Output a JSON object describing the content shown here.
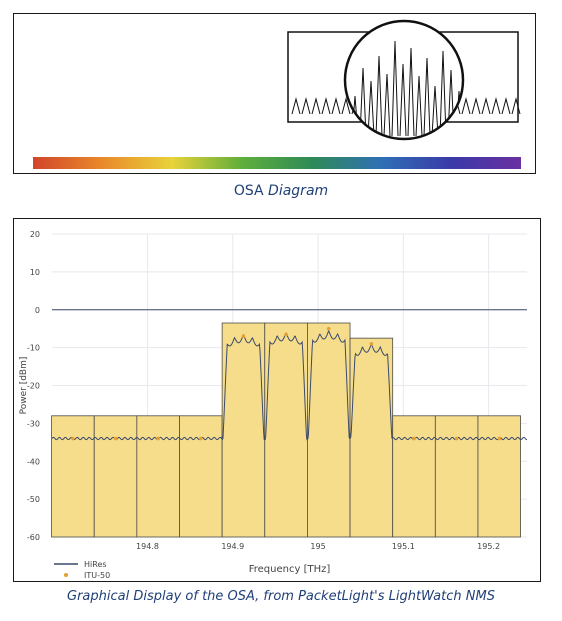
{
  "diagram": {
    "caption_prefix": "OSA",
    "caption_italic": "Diagram",
    "spectrum_colors": [
      "#d2452a",
      "#e98a2a",
      "#e8d33a",
      "#5fae3c",
      "#2e8b57",
      "#2f6fb5",
      "#3a3aa8",
      "#6a2fa0"
    ]
  },
  "chart_data": {
    "type": "area",
    "ylabel": "Power [dBm]",
    "xlabel": "Frequency [THz]",
    "xlim": [
      194.688,
      195.245
    ],
    "ylim": [
      -60,
      20
    ],
    "x_ticks": [
      194.8,
      194.9,
      195,
      195.1,
      195.2
    ],
    "x_tick_labels": [
      "194.8",
      "194.9",
      "195",
      "195.1",
      "195.2"
    ],
    "y_ticks": [
      20,
      10,
      0,
      -10,
      -20,
      -30,
      -40,
      -50,
      -60
    ],
    "y_tick_labels": [
      "20",
      "10",
      "0",
      "-10",
      "-20",
      "-30",
      "-40",
      "-50",
      "-60"
    ],
    "grid": true,
    "zero_line": true,
    "legend_position": "bottom-left",
    "series": [
      {
        "name": "HiRes",
        "color": "#3a4a6a"
      },
      {
        "name": "ITU-50",
        "color": "#e8a030"
      }
    ],
    "channel_bars": [
      {
        "x0": 194.6875,
        "x1": 194.7375,
        "value": -28
      },
      {
        "x0": 194.7375,
        "x1": 194.7875,
        "value": -28
      },
      {
        "x0": 194.7875,
        "x1": 194.8375,
        "value": -28
      },
      {
        "x0": 194.8375,
        "x1": 194.8875,
        "value": -28
      },
      {
        "x0": 194.8875,
        "x1": 194.9375,
        "value": -3.5
      },
      {
        "x0": 194.9375,
        "x1": 194.9875,
        "value": -3.5
      },
      {
        "x0": 194.9875,
        "x1": 195.0375,
        "value": -3.5
      },
      {
        "x0": 195.0375,
        "x1": 195.0875,
        "value": -7.5
      },
      {
        "x0": 195.0875,
        "x1": 195.1375,
        "value": -28
      },
      {
        "x0": 195.1375,
        "x1": 195.1875,
        "value": -28
      },
      {
        "x0": 195.1875,
        "x1": 195.2375,
        "value": -28
      }
    ],
    "itu_points": [
      {
        "x": 194.7125,
        "y": -34
      },
      {
        "x": 194.7625,
        "y": -34
      },
      {
        "x": 194.8125,
        "y": -34
      },
      {
        "x": 194.8625,
        "y": -34
      },
      {
        "x": 194.9125,
        "y": -7
      },
      {
        "x": 194.9625,
        "y": -6.5
      },
      {
        "x": 195.0125,
        "y": -5
      },
      {
        "x": 195.0625,
        "y": -9
      },
      {
        "x": 195.1125,
        "y": -34
      },
      {
        "x": 195.1625,
        "y": -34
      },
      {
        "x": 195.2125,
        "y": -34
      }
    ],
    "noise_floor": -34,
    "channels": [
      {
        "center": 194.9125,
        "peak": -6.5
      },
      {
        "center": 194.9625,
        "peak": -6
      },
      {
        "center": 195.0125,
        "peak": -5.5
      },
      {
        "center": 195.0625,
        "peak": -9
      }
    ]
  },
  "caption_bottom": "Graphical Display of the OSA, from PacketLight's LightWatch NMS",
  "colors": {
    "bar_fill": "#f6dd8c",
    "bar_stroke": "#4a4a4a",
    "grid": "#e8e8ee",
    "zero_line": "#3a4a6a",
    "caption": "#1f3f77"
  }
}
